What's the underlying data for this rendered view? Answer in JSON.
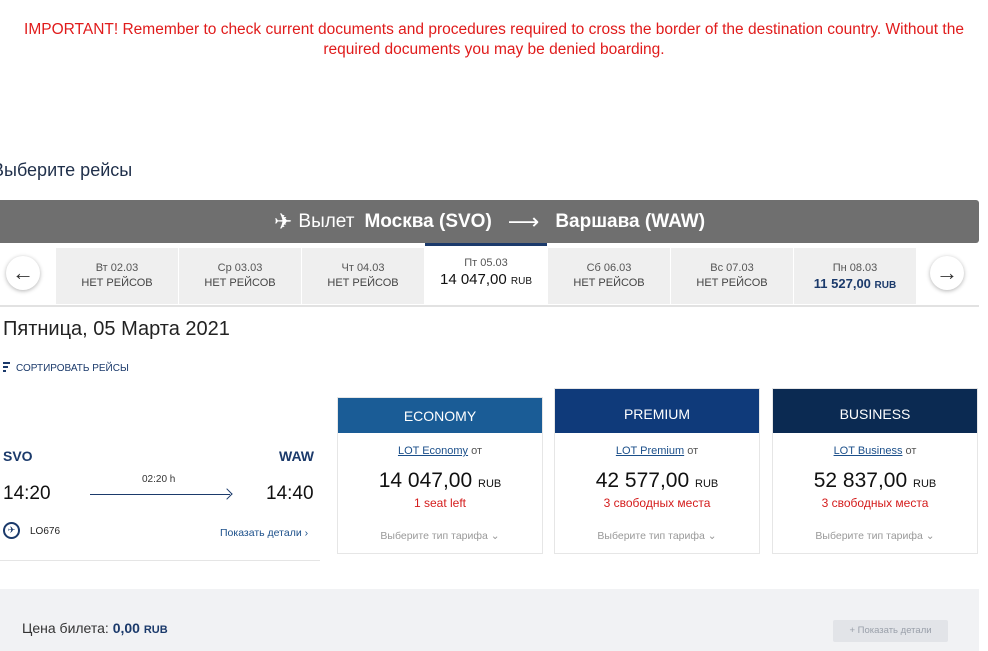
{
  "warning": "IMPORTANT! Remember to check current documents and procedures required to cross the border of the destination country. Without the\nrequired documents you may be denied boarding.",
  "section_title": "Выберите рейсы",
  "route": {
    "label": "Вылет",
    "from": "Москва (SVO)",
    "arrow": "⟶",
    "to": "Варшава (WAW)"
  },
  "dates": [
    {
      "day": "Вт 02.03",
      "status": "НЕТ РЕЙСОВ",
      "price": "",
      "currency": ""
    },
    {
      "day": "Ср 03.03",
      "status": "НЕТ РЕЙСОВ",
      "price": "",
      "currency": ""
    },
    {
      "day": "Чт 04.03",
      "status": "НЕТ РЕЙСОВ",
      "price": "",
      "currency": ""
    },
    {
      "day": "Пт 05.03",
      "status": "",
      "price": "14 047,00",
      "currency": "RUB"
    },
    {
      "day": "Сб 06.03",
      "status": "НЕТ РЕЙСОВ",
      "price": "",
      "currency": ""
    },
    {
      "day": "Вс 07.03",
      "status": "НЕТ РЕЙСОВ",
      "price": "",
      "currency": ""
    },
    {
      "day": "Пн 08.03",
      "status": "",
      "price": "11 527,00",
      "currency": "RUB"
    }
  ],
  "day_title": "Пятница, 05 Марта 2021",
  "sort_label": "СОРТИРОВАТЬ РЕЙСЫ",
  "flight": {
    "from_code": "SVO",
    "to_code": "WAW",
    "dep_time": "14:20",
    "arr_time": "14:40",
    "duration": "02:20 h",
    "number": "LO676",
    "details": "Показать детали ›"
  },
  "cabins": [
    {
      "name": "ECONOMY",
      "fare_name": "LOT Economy",
      "fare_suffix": " от",
      "price": "14 047,00",
      "currency": "RUB",
      "seats": "1 seat left",
      "choose": "Выберите тип тарифа ⌄",
      "color": "#1a5c96"
    },
    {
      "name": "PREMIUM",
      "fare_name": "LOT Premium",
      "fare_suffix": " от",
      "price": "42 577,00",
      "currency": "RUB",
      "seats": "3 свободных места",
      "choose": "Выберите тип тарифа ⌄",
      "color": "#0f3a7a"
    },
    {
      "name": "BUSINESS",
      "fare_name": "LOT Business",
      "fare_suffix": " от",
      "price": "52 837,00",
      "currency": "RUB",
      "seats": "3 свободных места",
      "choose": "Выберите тип тарифа ⌄",
      "color": "#0b2a52"
    }
  ],
  "summary": {
    "price_label": "Цена билета: ",
    "price_value": "0,00",
    "currency": "RUB",
    "button": "+ Показать детали"
  }
}
